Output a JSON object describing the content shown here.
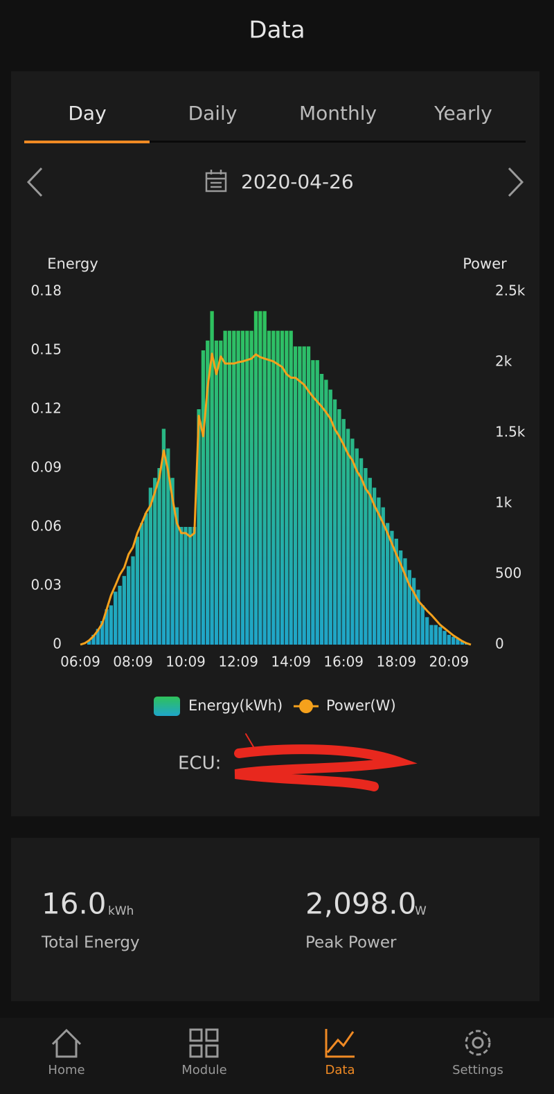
{
  "header": {
    "title": "Data"
  },
  "tabs": [
    "Day",
    "Daily",
    "Monthly",
    "Yearly"
  ],
  "date": "2020-04-26",
  "chart_data": {
    "type": "bar",
    "y_label": "Energy",
    "y2_label": "Power",
    "categories": [
      "06:09",
      null,
      null,
      null,
      null,
      null,
      null,
      null,
      null,
      null,
      null,
      null,
      "08:09",
      null,
      null,
      null,
      null,
      null,
      null,
      null,
      null,
      null,
      null,
      null,
      "10:09",
      null,
      null,
      null,
      null,
      null,
      null,
      null,
      null,
      null,
      null,
      null,
      "12:09",
      null,
      null,
      null,
      null,
      null,
      null,
      null,
      null,
      null,
      null,
      null,
      "14:09",
      null,
      null,
      null,
      null,
      null,
      null,
      null,
      null,
      null,
      null,
      null,
      "16:09",
      null,
      null,
      null,
      null,
      null,
      null,
      null,
      null,
      null,
      null,
      null,
      "18:09",
      null,
      null,
      null,
      null,
      null,
      null,
      null,
      null,
      null,
      null,
      null,
      "20:09",
      null,
      null,
      null,
      null,
      null
    ],
    "series": [
      {
        "name": "Energy(kWh)",
        "type": "bar",
        "color": "#2fc25b",
        "values": [
          0,
          0,
          0.002,
          0.005,
          0.008,
          0.012,
          0.018,
          0.02,
          0.027,
          0.03,
          0.035,
          0.04,
          0.045,
          0.055,
          0.062,
          0.067,
          0.08,
          0.085,
          0.09,
          0.11,
          0.1,
          0.085,
          0.07,
          0.06,
          0.06,
          0.06,
          0.06,
          0.12,
          0.15,
          0.155,
          0.17,
          0.155,
          0.155,
          0.16,
          0.16,
          0.16,
          0.16,
          0.16,
          0.16,
          0.16,
          0.17,
          0.17,
          0.17,
          0.16,
          0.16,
          0.16,
          0.16,
          0.16,
          0.16,
          0.152,
          0.152,
          0.152,
          0.152,
          0.145,
          0.145,
          0.138,
          0.135,
          0.13,
          0.125,
          0.12,
          0.115,
          0.11,
          0.105,
          0.1,
          0.095,
          0.09,
          0.085,
          0.08,
          0.075,
          0.07,
          0.062,
          0.058,
          0.054,
          0.048,
          0.044,
          0.038,
          0.034,
          0.028,
          0.02,
          0.014,
          0.01,
          0.01,
          0.009,
          0.007,
          0.005,
          0.004,
          0.003,
          0.002,
          0.001,
          0
        ]
      },
      {
        "name": "Power(W)",
        "type": "line",
        "axis": "y2",
        "color": "#f5a11c",
        "values": [
          0,
          10,
          30,
          60,
          100,
          150,
          250,
          350,
          420,
          495,
          545,
          640,
          690,
          790,
          860,
          935,
          985,
          1080,
          1180,
          1375,
          1230,
          1035,
          860,
          790,
          790,
          765,
          790,
          1620,
          1475,
          1820,
          2060,
          1915,
          2040,
          1990,
          1990,
          1990,
          2000,
          2005,
          2015,
          2025,
          2055,
          2035,
          2025,
          2015,
          2005,
          1985,
          1965,
          1915,
          1890,
          1890,
          1865,
          1840,
          1795,
          1755,
          1720,
          1685,
          1645,
          1600,
          1525,
          1475,
          1415,
          1350,
          1305,
          1230,
          1180,
          1105,
          1060,
          985,
          925,
          860,
          790,
          715,
          640,
          570,
          495,
          420,
          370,
          310,
          275,
          240,
          210,
          175,
          140,
          115,
          90,
          65,
          45,
          25,
          10,
          0
        ]
      }
    ],
    "ylim": [
      0,
      0.18
    ],
    "yticks": [
      0,
      0.03,
      0.06,
      0.09,
      0.12,
      0.15,
      0.18
    ],
    "y2lim": [
      0,
      2500
    ],
    "y2ticks": [
      0,
      500,
      {
        "value": 1000,
        "label": "1k"
      },
      {
        "value": 1500,
        "label": "1.5k"
      },
      {
        "value": 2000,
        "label": "2k"
      },
      {
        "value": 2500,
        "label": "2.5k"
      }
    ],
    "grid": false
  },
  "ecu": {
    "label": "ECU:"
  },
  "summary": {
    "total": {
      "value": "16.0",
      "unit": "kWh",
      "label": "Total Energy"
    },
    "peak": {
      "value": "2,098.0",
      "unit": "W",
      "label": "Peak Power"
    }
  },
  "nav": [
    "Home",
    "Module",
    "Data",
    "Settings"
  ]
}
